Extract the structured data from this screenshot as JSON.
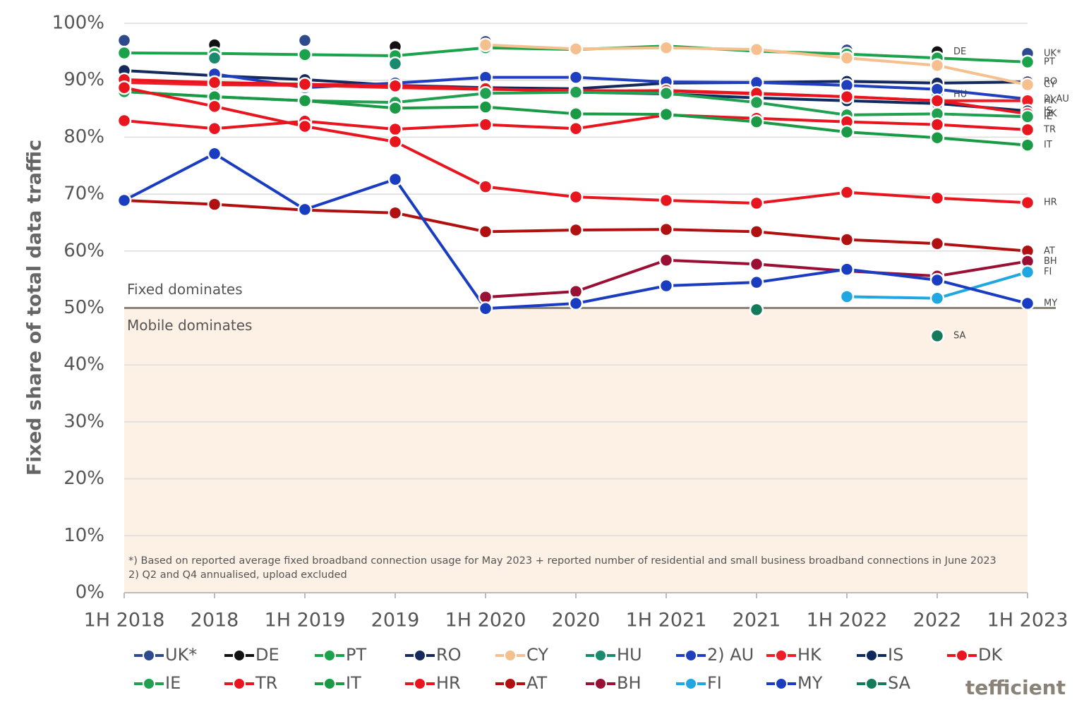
{
  "chart_data": {
    "type": "line",
    "y_label": "Fixed share of total data traffic",
    "categories": [
      "1H 2018",
      "2018",
      "1H 2019",
      "2019",
      "1H 2020",
      "2020",
      "1H 2021",
      "2021",
      "1H 2022",
      "2022",
      "1H 2023"
    ],
    "ylim": [
      0,
      100
    ],
    "yticks": [
      {
        "value": 0,
        "label": "0%"
      },
      {
        "value": 10,
        "label": "10%"
      },
      {
        "value": 20,
        "label": "20%"
      },
      {
        "value": 30,
        "label": "30%"
      },
      {
        "value": 40,
        "label": "40%"
      },
      {
        "value": 50,
        "label": "50%"
      },
      {
        "value": 60,
        "label": "60%"
      },
      {
        "value": 70,
        "label": "70%"
      },
      {
        "value": 80,
        "label": "80%"
      },
      {
        "value": 90,
        "label": "90%"
      },
      {
        "value": 100,
        "label": "100%"
      }
    ],
    "grid": true,
    "threshold": 50,
    "annotations": {
      "above": "Fixed dominates",
      "below": "Mobile dominates"
    },
    "footnotes": [
      "*) Based on reported average fixed broadband connection usage for May 2023 + reported number of residential and small business broadband connections in June 2023",
      "2) Q2 and Q4 annualised, upload excluded"
    ],
    "brand": "tefficient",
    "series": [
      {
        "name": "UK*",
        "color": "#2e4a8f",
        "values": [
          97.0,
          null,
          97.0,
          null,
          96.8,
          null,
          null,
          null,
          95.3,
          null,
          94.7
        ]
      },
      {
        "name": "DE",
        "color": "#111111",
        "values": [
          null,
          96.2,
          null,
          95.9,
          null,
          null,
          null,
          null,
          null,
          95.0,
          null
        ]
      },
      {
        "name": "PT",
        "color": "#1aa34a",
        "values": [
          94.8,
          94.7,
          94.5,
          94.3,
          95.7,
          95.4,
          96.0,
          95.1,
          94.6,
          93.9,
          93.2
        ]
      },
      {
        "name": "RO",
        "color": "#142a5c",
        "values": [
          91.7,
          90.8,
          90.1,
          89.1,
          88.7,
          88.5,
          89.5,
          89.6,
          89.8,
          89.5,
          89.7
        ]
      },
      {
        "name": "CY",
        "color": "#f5c08e",
        "values": [
          null,
          null,
          null,
          null,
          96.2,
          95.5,
          95.7,
          95.4,
          93.9,
          92.6,
          89.2
        ]
      },
      {
        "name": "HU",
        "color": "#1a8a6e",
        "values": [
          null,
          93.9,
          null,
          92.9,
          null,
          null,
          null,
          null,
          null,
          87.5,
          null
        ]
      },
      {
        "name": "2) AU",
        "color": "#1f3fbf",
        "values": [
          null,
          91.1,
          88.7,
          89.5,
          90.5,
          90.5,
          89.7,
          89.6,
          89.1,
          88.4,
          86.7
        ]
      },
      {
        "name": "HK",
        "color": "#ee1c25",
        "values": [
          89.6,
          89.2,
          89.1,
          88.7,
          88.4,
          88.2,
          88.1,
          87.6,
          87.1,
          86.4,
          86.4
        ]
      },
      {
        "name": "IS",
        "color": "#0f2a5e",
        "values": [
          null,
          null,
          null,
          null,
          88.7,
          87.9,
          87.6,
          86.9,
          86.4,
          85.9,
          84.6
        ]
      },
      {
        "name": "DK",
        "color": "#e8141e",
        "values": [
          90.1,
          89.6,
          89.3,
          89.0,
          88.5,
          88.0,
          88.2,
          87.7,
          87.1,
          86.4,
          84.1
        ]
      },
      {
        "name": "IE",
        "color": "#20a050",
        "values": [
          88.0,
          87.1,
          86.4,
          86.1,
          87.7,
          87.9,
          87.7,
          86.1,
          83.9,
          84.1,
          83.6
        ]
      },
      {
        "name": "TR",
        "color": "#e8141e",
        "values": [
          82.9,
          81.5,
          82.8,
          81.4,
          82.2,
          81.5,
          83.9,
          83.3,
          82.7,
          82.2,
          81.3
        ]
      },
      {
        "name": "IT",
        "color": "#1b9a45",
        "values": [
          88.0,
          87.1,
          86.4,
          85.1,
          85.3,
          84.1,
          84.0,
          82.7,
          80.9,
          79.9,
          78.6
        ]
      },
      {
        "name": "HR",
        "color": "#e8141e",
        "values": [
          88.7,
          85.4,
          81.9,
          79.2,
          71.3,
          69.5,
          68.9,
          68.4,
          70.3,
          69.3,
          68.5
        ]
      },
      {
        "name": "AT",
        "color": "#b01010",
        "values": [
          68.9,
          68.2,
          67.2,
          66.7,
          63.4,
          63.7,
          63.8,
          63.4,
          62.0,
          61.3,
          60.0
        ]
      },
      {
        "name": "BH",
        "color": "#9a1035",
        "values": [
          null,
          null,
          null,
          null,
          51.9,
          52.9,
          58.4,
          57.7,
          56.5,
          55.6,
          58.2
        ]
      },
      {
        "name": "FI",
        "color": "#1ea7e1",
        "values": [
          null,
          null,
          null,
          null,
          null,
          null,
          null,
          null,
          52.0,
          51.7,
          56.3
        ]
      },
      {
        "name": "MY",
        "color": "#1a3cc0",
        "values": [
          68.9,
          77.1,
          67.3,
          72.6,
          49.9,
          50.8,
          53.9,
          54.5,
          56.8,
          54.9,
          50.8
        ]
      },
      {
        "name": "SA",
        "color": "#137a5a",
        "values": [
          null,
          null,
          null,
          null,
          null,
          null,
          null,
          49.7,
          null,
          45.1,
          null
        ]
      }
    ]
  }
}
